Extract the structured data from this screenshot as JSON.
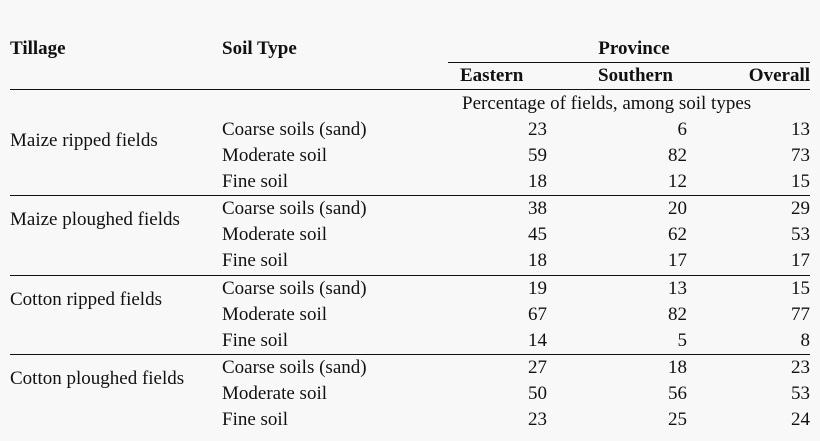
{
  "header": {
    "tillage": "Tillage",
    "soil_type": "Soil Type",
    "province": "Province",
    "eastern": "Eastern",
    "southern": "Southern",
    "overall": "Overall",
    "subtitle": "Percentage of fields, among soil types"
  },
  "groups": [
    {
      "tillage": "Maize ripped fields",
      "rows": [
        {
          "soil": "Coarse soils (sand)",
          "eastern": "23",
          "southern": "6",
          "overall": "13"
        },
        {
          "soil": "Moderate soil",
          "eastern": "59",
          "southern": "82",
          "overall": "73"
        },
        {
          "soil": "Fine soil",
          "eastern": "18",
          "southern": "12",
          "overall": "15"
        }
      ]
    },
    {
      "tillage": "Maize ploughed fields",
      "rows": [
        {
          "soil": "Coarse soils (sand)",
          "eastern": "38",
          "southern": "20",
          "overall": "29"
        },
        {
          "soil": "Moderate soil",
          "eastern": "45",
          "southern": "62",
          "overall": "53"
        },
        {
          "soil": "Fine soil",
          "eastern": "18",
          "southern": "17",
          "overall": "17"
        }
      ]
    },
    {
      "tillage": "Cotton ripped fields",
      "rows": [
        {
          "soil": "Coarse soils (sand)",
          "eastern": "19",
          "southern": "13",
          "overall": "15"
        },
        {
          "soil": "Moderate soil",
          "eastern": "67",
          "southern": "82",
          "overall": "77"
        },
        {
          "soil": "Fine soil",
          "eastern": "14",
          "southern": "5",
          "overall": "8"
        }
      ]
    },
    {
      "tillage": "Cotton ploughed fields",
      "rows": [
        {
          "soil": "Coarse soils (sand)",
          "eastern": "27",
          "southern": "18",
          "overall": "23"
        },
        {
          "soil": "Moderate soil",
          "eastern": "50",
          "southern": "56",
          "overall": "53"
        },
        {
          "soil": "Fine soil",
          "eastern": "23",
          "southern": "25",
          "overall": "24"
        }
      ]
    }
  ]
}
